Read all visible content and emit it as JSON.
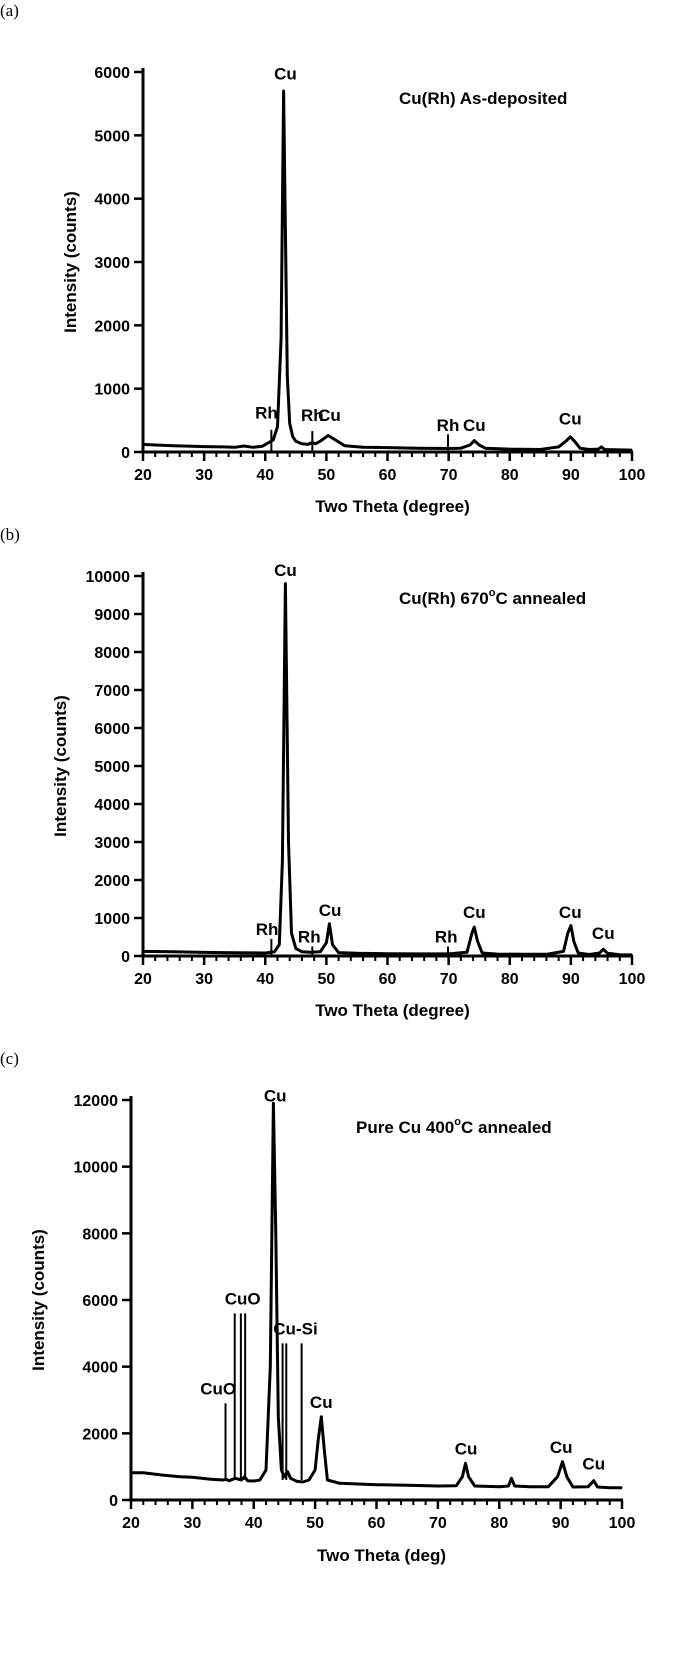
{
  "chart_data": [
    {
      "type": "line",
      "panel_label": "(a)",
      "title": "Cu(Rh) As-deposited",
      "title_superscript": "",
      "title_suffix": "",
      "xlabel": "Two Theta (degree)",
      "ylabel": "Intensity (counts)",
      "xlim": [
        20,
        100
      ],
      "ylim": [
        0,
        6000
      ],
      "xticks": [
        20,
        30,
        40,
        50,
        60,
        70,
        80,
        90,
        100
      ],
      "yticks": [
        0,
        1000,
        2000,
        3000,
        4000,
        5000,
        6000
      ],
      "grid": false,
      "series": [
        {
          "x": [
            20,
            22,
            25,
            28,
            30,
            33,
            35,
            36.5,
            38,
            39.5,
            40.6,
            41.3,
            42,
            42.6,
            43,
            43.3,
            43.6,
            44,
            44.5,
            45,
            46,
            47,
            47.7,
            48.2,
            49,
            50.3,
            51.5,
            53,
            56,
            60,
            65,
            70,
            72,
            73.5,
            74.2,
            75,
            76,
            80,
            85,
            88,
            89.3,
            89.9,
            90.6,
            91.5,
            93,
            94.5,
            95,
            95.5,
            97,
            100
          ],
          "y": [
            120,
            110,
            100,
            90,
            85,
            80,
            75,
            95,
            75,
            90,
            150,
            190,
            400,
            1800,
            5700,
            3500,
            1200,
            450,
            240,
            170,
            130,
            120,
            150,
            130,
            170,
            260,
            190,
            100,
            75,
            70,
            60,
            55,
            60,
            110,
            180,
            110,
            60,
            45,
            40,
            80,
            180,
            240,
            170,
            60,
            40,
            45,
            80,
            40,
            35,
            30
          ]
        }
      ],
      "annotations": [
        {
          "text": "Cu",
          "x": 43.3,
          "y": 5850
        },
        {
          "text": "Rh",
          "x": 40.2,
          "y": 500
        },
        {
          "text": "Rh",
          "x": 47.7,
          "y": 460
        },
        {
          "text": "Cu",
          "x": 50.5,
          "y": 460
        },
        {
          "text": "Rh",
          "x": 69.9,
          "y": 300
        },
        {
          "text": "Cu",
          "x": 74.2,
          "y": 300
        },
        {
          "text": "Cu",
          "x": 89.9,
          "y": 400
        }
      ],
      "markers": [
        {
          "x": 41.0,
          "y1": 0,
          "y2": 350
        },
        {
          "x": 47.7,
          "y1": 0,
          "y2": 330
        },
        {
          "x": 69.9,
          "y1": 0,
          "y2": 280
        }
      ]
    },
    {
      "type": "line",
      "panel_label": "(b)",
      "title": "Cu(Rh) 670",
      "title_superscript": "o",
      "title_suffix": "C annealed",
      "xlabel": "Two Theta (degree)",
      "ylabel": "Intensity (counts)",
      "xlim": [
        20,
        100
      ],
      "ylim": [
        0,
        10000
      ],
      "xticks": [
        20,
        30,
        40,
        50,
        60,
        70,
        80,
        90,
        100
      ],
      "yticks": [
        0,
        1000,
        2000,
        3000,
        4000,
        5000,
        6000,
        7000,
        8000,
        9000,
        10000
      ],
      "grid": false,
      "series": [
        {
          "x": [
            20,
            25,
            30,
            35,
            40,
            41.5,
            42.3,
            42.8,
            43.3,
            43.8,
            44.3,
            45,
            46,
            47.5,
            49,
            50,
            50.5,
            51,
            52,
            55,
            60,
            65,
            70,
            73,
            73.8,
            74.2,
            74.7,
            75.5,
            78,
            82,
            86,
            88.8,
            89.5,
            90,
            90.5,
            91.2,
            93,
            94.7,
            95.3,
            96,
            98,
            100
          ],
          "y": [
            120,
            110,
            95,
            85,
            80,
            110,
            300,
            2500,
            9800,
            3000,
            600,
            200,
            110,
            100,
            110,
            350,
            850,
            300,
            90,
            70,
            60,
            55,
            55,
            100,
            600,
            760,
            400,
            80,
            50,
            45,
            45,
            120,
            600,
            800,
            380,
            80,
            40,
            80,
            180,
            70,
            35,
            30
          ]
        }
      ],
      "annotations": [
        {
          "text": "Cu",
          "x": 43.3,
          "y": 9950
        },
        {
          "text": "Rh",
          "x": 40.3,
          "y": 500
        },
        {
          "text": "Rh",
          "x": 47.2,
          "y": 300
        },
        {
          "text": "Cu",
          "x": 50.6,
          "y": 1000
        },
        {
          "text": "Rh",
          "x": 69.6,
          "y": 300
        },
        {
          "text": "Cu",
          "x": 74.2,
          "y": 950
        },
        {
          "text": "Cu",
          "x": 89.9,
          "y": 950
        },
        {
          "text": "Cu",
          "x": 95.3,
          "y": 400
        }
      ],
      "markers": [
        {
          "x": 41.0,
          "y1": 0,
          "y2": 450
        },
        {
          "x": 47.7,
          "y1": 0,
          "y2": 250
        },
        {
          "x": 69.9,
          "y1": 0,
          "y2": 250
        }
      ]
    },
    {
      "type": "line",
      "panel_label": "(c)",
      "title": "Pure Cu 400",
      "title_superscript": "o",
      "title_suffix": "C annealed",
      "xlabel": "Two Theta (deg)",
      "ylabel": "Intensity (counts)",
      "xlim": [
        20,
        100
      ],
      "ylim": [
        0,
        12000
      ],
      "xticks": [
        20,
        30,
        40,
        50,
        60,
        70,
        80,
        90,
        100
      ],
      "yticks": [
        0,
        2000,
        4000,
        6000,
        8000,
        10000,
        12000
      ],
      "grid": false,
      "series": [
        {
          "x": [
            20,
            22,
            25,
            28,
            30,
            33,
            35,
            35.5,
            36,
            37,
            38,
            38.5,
            39,
            40,
            41,
            42,
            42.7,
            43.2,
            43.6,
            44,
            44.5,
            45,
            45.5,
            46,
            47,
            48,
            49,
            50,
            50.5,
            51,
            51.5,
            52,
            54,
            60,
            65,
            70,
            73,
            74,
            74.5,
            75,
            76,
            80,
            81.5,
            82,
            82.5,
            85,
            88,
            89.5,
            90.3,
            91,
            92,
            94.5,
            95.4,
            96,
            98,
            100
          ],
          "y": [
            820,
            820,
            750,
            700,
            680,
            620,
            600,
            620,
            580,
            650,
            600,
            700,
            580,
            570,
            600,
            900,
            4000,
            11900,
            8000,
            2500,
            900,
            700,
            850,
            650,
            560,
            540,
            600,
            900,
            1800,
            2500,
            1500,
            600,
            500,
            460,
            440,
            420,
            430,
            700,
            1100,
            700,
            420,
            400,
            420,
            650,
            420,
            400,
            400,
            700,
            1150,
            700,
            390,
            400,
            580,
            390,
            370,
            370
          ]
        }
      ],
      "annotations": [
        {
          "text": "Cu",
          "x": 43.5,
          "y": 11900
        },
        {
          "text": "CuO",
          "x": 34.2,
          "y": 3100
        },
        {
          "text": "CuO",
          "x": 38.2,
          "y": 5800
        },
        {
          "text": "Cu-Si",
          "x": 46.8,
          "y": 4900
        },
        {
          "text": "Cu",
          "x": 51.0,
          "y": 2700
        },
        {
          "text": "Cu",
          "x": 74.6,
          "y": 1300
        },
        {
          "text": "Cu",
          "x": 90.1,
          "y": 1350
        },
        {
          "text": "Cu",
          "x": 95.4,
          "y": 850
        }
      ],
      "markers": [
        {
          "x": 35.4,
          "y1": 600,
          "y2": 2900
        },
        {
          "x": 36.9,
          "y1": 600,
          "y2": 5600
        },
        {
          "x": 37.9,
          "y1": 600,
          "y2": 5600
        },
        {
          "x": 38.6,
          "y1": 600,
          "y2": 5600
        },
        {
          "x": 44.7,
          "y1": 600,
          "y2": 4700
        },
        {
          "x": 45.3,
          "y1": 600,
          "y2": 4700
        },
        {
          "x": 47.8,
          "y1": 600,
          "y2": 4700
        }
      ]
    }
  ]
}
